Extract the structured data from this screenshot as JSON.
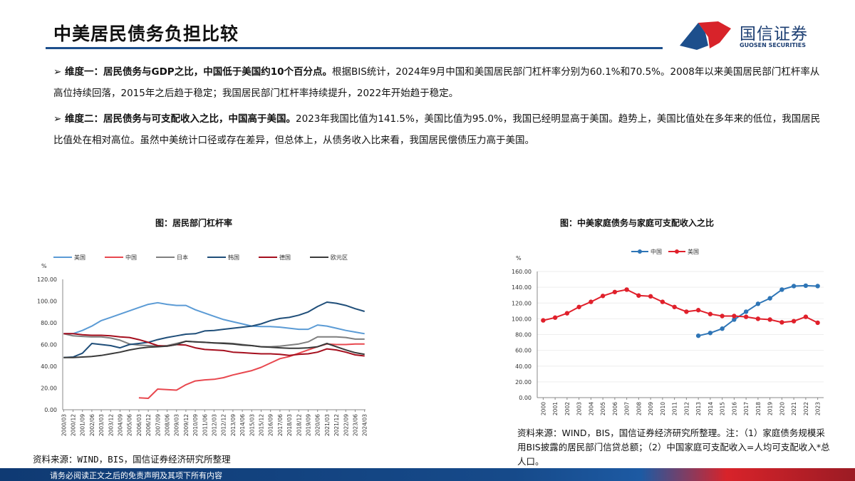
{
  "header": {
    "title": "中美居民债务负担比较",
    "logo_cn": "国信证券",
    "logo_en": "GUOSEN SECURITIES"
  },
  "paragraphs": [
    {
      "bullet": "➢ ",
      "bold": "维度一：居民债务与GDP之比，中国低于美国约10个百分点。",
      "text": "根据BIS统计，2024年9月中国和美国居民部门杠杆率分别为60.1%和70.5%。2008年以来美国居民部门杠杆率从高位持续回落，2015年之后趋于稳定；我国居民部门杠杆率持续提升，2022年开始趋于稳定。"
    },
    {
      "bullet": "➢ ",
      "bold": "维度二：居民债务与可支配收入之比，中国高于美国。",
      "text": "2023年我国比值为141.5%，美国比值为95.0%，我国已经明显高于美国。趋势上，美国比值处在多年来的低位，我国居民比值处在相对高位。虽然中美统计口径或存在差异，但总体上，从债务收入比来看，我国居民偿债压力高于美国。"
    }
  ],
  "chart_data": [
    {
      "type": "line",
      "title": "图：居民部门杠杆率",
      "ylabel": "%",
      "ylim": [
        0,
        120
      ],
      "yticks": [
        "0.00",
        "20.00",
        "40.00",
        "60.00",
        "80.00",
        "100.00",
        "120.00"
      ],
      "categories": [
        "2000/03",
        "2000/12",
        "2001/09",
        "2002/06",
        "2003/03",
        "2003/12",
        "2004/09",
        "2005/06",
        "2006/03",
        "2006/12",
        "2007/09",
        "2008/06",
        "2009/03",
        "2009/12",
        "2010/09",
        "2011/06",
        "2012/03",
        "2012/12",
        "2013/09",
        "2014/06",
        "2015/03",
        "2015/12",
        "2016/09",
        "2017/06",
        "2018/03",
        "2018/12",
        "2019/09",
        "2020/06",
        "2021/03",
        "2021/12",
        "2022/09",
        "2023/06",
        "2024/03"
      ],
      "legend": "top",
      "series": [
        {
          "name": "美国",
          "color": "#5b9bd5",
          "values": [
            70,
            70,
            73,
            77,
            82,
            85,
            88,
            91,
            94,
            97,
            98.5,
            97,
            96,
            96,
            92,
            89,
            86,
            83,
            81,
            79,
            77,
            76.5,
            76.5,
            76,
            75,
            74,
            74,
            78,
            77,
            75,
            73,
            71.5,
            70
          ]
        },
        {
          "name": "中国",
          "color": "#e8484f",
          "values": [
            null,
            null,
            null,
            null,
            null,
            null,
            null,
            null,
            11,
            10.5,
            19,
            18.5,
            18,
            23,
            26.5,
            27.5,
            28,
            29.5,
            32,
            34,
            36,
            39,
            43,
            47,
            49,
            52,
            55,
            58,
            60.5,
            60,
            60,
            60.5,
            60.5
          ]
        },
        {
          "name": "日本",
          "color": "#7f7f7f",
          "values": [
            70,
            68,
            67.5,
            67,
            67,
            66,
            64,
            60.5,
            59.5,
            59,
            58.5,
            59,
            61,
            63,
            62.5,
            62,
            61.5,
            61.5,
            61,
            60,
            59,
            58,
            58,
            58.5,
            59.5,
            60.5,
            62.5,
            67,
            67,
            67,
            66.5,
            65,
            65
          ]
        },
        {
          "name": "韩国",
          "color": "#1f4e79",
          "values": [
            48,
            48.5,
            52,
            61,
            60,
            59,
            57,
            60,
            61,
            62,
            64.5,
            66.5,
            68,
            69.5,
            70,
            72.5,
            73,
            74,
            75,
            76,
            77,
            79,
            82,
            84,
            85,
            87,
            90,
            95,
            99,
            98,
            96,
            93,
            90.5
          ]
        },
        {
          "name": "德国",
          "color": "#a50f1e",
          "values": [
            70,
            70,
            69,
            68.5,
            68.5,
            68,
            67,
            66.5,
            64.5,
            62,
            59,
            58.5,
            60,
            59.5,
            57,
            55.5,
            55,
            54.5,
            53,
            52.5,
            52,
            51.5,
            51.5,
            51,
            50,
            51,
            51.5,
            53,
            56,
            55,
            53,
            50.5,
            49.5
          ]
        },
        {
          "name": "欧元区",
          "color": "#3a3a3a",
          "values": [
            48,
            48,
            48.5,
            49,
            50,
            51.5,
            53,
            55,
            56.5,
            57.5,
            58,
            58.5,
            60,
            63,
            62.5,
            62,
            61.5,
            61,
            60.5,
            59.5,
            59,
            58,
            57.5,
            57,
            56.5,
            56.5,
            57,
            58,
            61,
            58,
            55,
            52.5,
            51
          ]
        }
      ]
    },
    {
      "type": "line",
      "title": "图：中美家庭债务与家庭可支配收入之比",
      "ylabel": "%",
      "ylim": [
        0,
        160
      ],
      "yticks": [
        "0.00",
        "20.00",
        "40.00",
        "60.00",
        "80.00",
        "100.00",
        "120.00",
        "140.00",
        "160.00"
      ],
      "categories": [
        "2000",
        "2001",
        "2002",
        "2003",
        "2004",
        "2005",
        "2006",
        "2007",
        "2008",
        "2009",
        "2010",
        "2011",
        "2012",
        "2013",
        "2014",
        "2015",
        "2016",
        "2017",
        "2018",
        "2019",
        "2020",
        "2021",
        "2022",
        "2023"
      ],
      "legend": "top",
      "series": [
        {
          "name": "中国",
          "color": "#2e75b6",
          "values": [
            null,
            null,
            null,
            null,
            null,
            null,
            null,
            null,
            null,
            null,
            null,
            null,
            null,
            78.5,
            82,
            87.5,
            99,
            109,
            119,
            126,
            137,
            141.5,
            142,
            141.5
          ]
        },
        {
          "name": "美国",
          "color": "#e0202b",
          "values": [
            98,
            101.5,
            107,
            115,
            121.5,
            129,
            134,
            137,
            129.5,
            128.5,
            121.5,
            115,
            109,
            111,
            106,
            103.5,
            103.5,
            102.5,
            100,
            99,
            95.5,
            97,
            102.5,
            95
          ]
        }
      ]
    }
  ],
  "sources": {
    "left": "资料来源：WIND，BIS，国信证券经济研究所整理",
    "right": "资料来源：WIND，BIS，国信证券经济研究所整理。注：（1）家庭债务规模采用BIS披露的居民部门信贷总额；（2）中国家庭可支配收入=人均可支配收入*总人口。"
  },
  "footer": {
    "disclaimer": "请务必阅读正文之后的免责声明及其项下所有内容"
  }
}
